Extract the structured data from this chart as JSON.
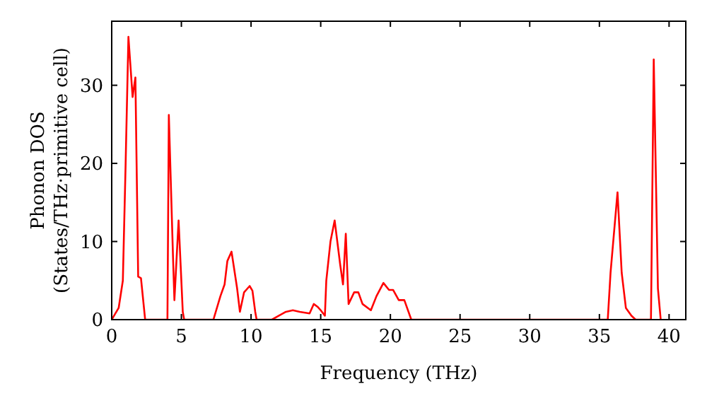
{
  "chart_data": {
    "type": "line",
    "xlabel": "Frequency (THz)",
    "ylabel": "Phonon DOS\n(States/THz·primitive cell)",
    "xlim": [
      0,
      41.2
    ],
    "xticks": [
      0,
      5,
      10,
      15,
      20,
      25,
      30,
      35,
      40
    ],
    "ylim": [
      0,
      38.2
    ],
    "yticks": [
      0,
      10,
      20,
      30
    ],
    "grid": false,
    "series": [
      {
        "color": "#ff0000",
        "x": [
          0,
          0.5,
          0.8,
          1.0,
          1.2,
          1.5,
          1.7,
          1.9,
          2.1,
          2.4,
          4.0,
          4.1,
          4.4,
          4.5,
          4.8,
          5.1,
          5.2,
          7.3,
          7.8,
          8.1,
          8.3,
          8.6,
          9.0,
          9.2,
          9.5,
          9.9,
          10.1,
          10.3,
          10.4,
          11.5,
          12,
          12.5,
          13.0,
          13.5,
          14.2,
          14.5,
          14.8,
          15.0,
          15.3,
          15.4,
          15.7,
          16.0,
          16.4,
          16.6,
          16.8,
          17.0,
          17.4,
          17.7,
          18.0,
          18.6,
          19.0,
          19.5,
          19.9,
          20.2,
          20.6,
          21.0,
          21.5,
          35.6,
          35.8,
          36.3,
          36.6,
          36.9,
          37.3,
          37.6,
          38.7,
          38.9,
          39.2,
          39.4
        ],
        "values": [
          0,
          1.5,
          5,
          20,
          36.2,
          28.5,
          31,
          5.5,
          5.3,
          0,
          0,
          26.2,
          8,
          2.5,
          12.7,
          1,
          0,
          0,
          3,
          4.5,
          7.5,
          8.7,
          4,
          1,
          3.5,
          4.3,
          3.7,
          1,
          0,
          0,
          0.5,
          1,
          1.2,
          1,
          0.8,
          2,
          1.6,
          1.2,
          0.5,
          5,
          10,
          12.7,
          7,
          4.5,
          11,
          2,
          3.5,
          3.5,
          2,
          1.2,
          3,
          4.7,
          3.8,
          3.8,
          2.5,
          2.5,
          0,
          0,
          6,
          16.3,
          6,
          1.5,
          0.5,
          0,
          0,
          33.3,
          4,
          0
        ]
      }
    ]
  }
}
